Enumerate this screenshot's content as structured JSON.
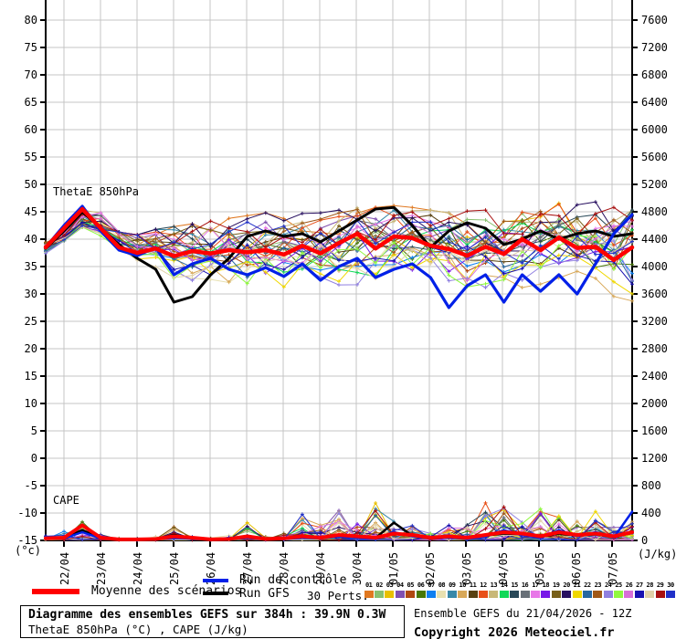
{
  "chart_data": {
    "type": "line",
    "title": "Diagramme des ensembles GEFS sur 384h : 39.9N 0.3W",
    "subtitle": "ThetaE 850hPa (°C) , CAPE (J/kg)",
    "left_axis": {
      "unit_label": "(°c)",
      "min": -15,
      "max": 80,
      "step": 5
    },
    "right_axis": {
      "unit_label": "(J/kg)",
      "min": 0,
      "max": 7600,
      "step": 400
    },
    "x_tick_labels": [
      "22/04",
      "23/04",
      "24/04",
      "25/04",
      "26/04",
      "27/04",
      "28/04",
      "29/04",
      "30/04",
      "01/05",
      "02/05",
      "03/05",
      "04/05",
      "05/05",
      "06/05",
      "07/05"
    ],
    "grid": true,
    "legend_position": "bottom",
    "thetae": {
      "label": "ThetaE 850hPa",
      "mean": [
        38.5,
        42.0,
        45.5,
        42.0,
        38.5,
        37.5,
        38.3,
        36.9,
        37.8,
        37.4,
        38.0,
        37.6,
        38.0,
        37.2,
        38.8,
        37.4,
        39.3,
        41.0,
        38.3,
        40.5,
        40.2,
        38.8,
        38.2,
        37.0,
        38.6,
        37.3,
        40.0,
        38.0,
        40.3,
        38.4,
        38.6,
        36.2,
        38.5
      ],
      "control": [
        38.5,
        42.5,
        46.0,
        41.5,
        38.0,
        37.0,
        38.5,
        33.5,
        35.5,
        36.5,
        34.5,
        33.5,
        34.8,
        33.2,
        35.5,
        32.5,
        35.0,
        36.5,
        33.0,
        34.5,
        35.5,
        33.0,
        27.5,
        31.5,
        33.5,
        28.5,
        33.5,
        30.5,
        33.5,
        30.0,
        35.5,
        41.0,
        44.5
      ],
      "gfs": [
        38.3,
        41.5,
        45.0,
        42.0,
        39.0,
        36.5,
        34.5,
        28.5,
        29.5,
        33.5,
        36.5,
        40.5,
        41.5,
        40.5,
        41.0,
        39.5,
        41.5,
        43.5,
        45.5,
        45.8,
        42.5,
        38.5,
        41.5,
        43.0,
        42.0,
        39.0,
        40.0,
        41.5,
        40.0,
        41.0,
        41.5,
        40.5,
        41.0
      ],
      "env_lo": [
        37.0,
        39.5,
        42.0,
        38.0,
        35.5,
        34.0,
        33.0,
        29.0,
        30.0,
        31.0,
        30.0,
        29.5,
        29.5,
        29.0,
        30.0,
        29.5,
        30.0,
        31.0,
        30.0,
        31.0,
        30.5,
        30.0,
        28.0,
        28.5,
        29.5,
        28.0,
        30.0,
        28.5,
        30.0,
        29.0,
        30.0,
        26.0,
        21.0
      ],
      "env_hi": [
        40.0,
        44.0,
        47.5,
        45.0,
        41.5,
        41.0,
        42.0,
        42.5,
        43.0,
        43.5,
        44.0,
        44.5,
        45.0,
        44.0,
        45.5,
        45.0,
        45.5,
        46.5,
        46.0,
        46.5,
        46.0,
        45.5,
        45.0,
        45.5,
        46.0,
        46.5,
        47.5,
        46.5,
        47.0,
        47.5,
        47.0,
        46.0,
        45.5
      ]
    },
    "cape": {
      "label": "CAPE",
      "mean": [
        30,
        40,
        220,
        40,
        15,
        15,
        20,
        60,
        40,
        15,
        20,
        60,
        20,
        30,
        60,
        40,
        80,
        60,
        40,
        100,
        80,
        40,
        60,
        40,
        80,
        120,
        100,
        60,
        120,
        80,
        100,
        60,
        120
      ],
      "control": [
        20,
        30,
        120,
        30,
        10,
        10,
        15,
        40,
        25,
        10,
        15,
        40,
        15,
        20,
        40,
        30,
        60,
        40,
        30,
        120,
        60,
        30,
        40,
        30,
        60,
        150,
        80,
        40,
        150,
        60,
        120,
        40,
        420
      ],
      "gfs": [
        25,
        35,
        150,
        35,
        10,
        10,
        15,
        80,
        30,
        10,
        15,
        50,
        15,
        25,
        50,
        35,
        70,
        50,
        35,
        260,
        70,
        35,
        50,
        35,
        70,
        100,
        90,
        50,
        100,
        70,
        90,
        50,
        110
      ],
      "env_hi": [
        120,
        160,
        430,
        120,
        40,
        40,
        60,
        350,
        120,
        40,
        100,
        380,
        60,
        200,
        500,
        300,
        650,
        350,
        600,
        620,
        300,
        200,
        300,
        260,
        640,
        700,
        350,
        600,
        620,
        350,
        520,
        260,
        450
      ]
    },
    "series_colors": {
      "mean": "#ff0000",
      "control": "#0020e8",
      "gfs": "#000000"
    },
    "members": [
      {
        "id": "01",
        "color": "#e07820"
      },
      {
        "id": "02",
        "color": "#88c070"
      },
      {
        "id": "03",
        "color": "#e8c000"
      },
      {
        "id": "04",
        "color": "#8050b0"
      },
      {
        "id": "05",
        "color": "#b04810"
      },
      {
        "id": "06",
        "color": "#487808"
      },
      {
        "id": "07",
        "color": "#1080f0"
      },
      {
        "id": "08",
        "color": "#e8e0b0"
      },
      {
        "id": "09",
        "color": "#3888a8"
      },
      {
        "id": "10",
        "color": "#d8a858"
      },
      {
        "id": "11",
        "color": "#584010"
      },
      {
        "id": "12",
        "color": "#e85018"
      },
      {
        "id": "13",
        "color": "#c8b878"
      },
      {
        "id": "14",
        "color": "#10d858"
      },
      {
        "id": "15",
        "color": "#284858"
      },
      {
        "id": "16",
        "color": "#687078"
      },
      {
        "id": "17",
        "color": "#e878e8"
      },
      {
        "id": "18",
        "color": "#7818e8"
      },
      {
        "id": "19",
        "color": "#786018"
      },
      {
        "id": "20",
        "color": "#281060"
      },
      {
        "id": "21",
        "color": "#f0d800"
      },
      {
        "id": "22",
        "color": "#2868a0"
      },
      {
        "id": "23",
        "color": "#a05818"
      },
      {
        "id": "24",
        "color": "#9080e0"
      },
      {
        "id": "25",
        "color": "#90f840"
      },
      {
        "id": "26",
        "color": "#d870d8"
      },
      {
        "id": "27",
        "color": "#1810b0"
      },
      {
        "id": "28",
        "color": "#e0d0a8"
      },
      {
        "id": "29",
        "color": "#a81010"
      },
      {
        "id": "30",
        "color": "#2030c8"
      }
    ]
  },
  "legend": {
    "mean_label": "Moyenne des scénarios",
    "control_label": "Run de contrôle",
    "gfs_label": "Run GFS",
    "perts_label": "30 Perts."
  },
  "footer": {
    "title": "Diagramme des ensembles GEFS sur 384h : 39.9N 0.3W",
    "subtitle": "ThetaE 850hPa (°C) , CAPE (J/kg)",
    "run_info": "Ensemble GEFS du 21/04/2026 - 12Z",
    "copyright": "Copyright 2026 Meteociel.fr"
  }
}
